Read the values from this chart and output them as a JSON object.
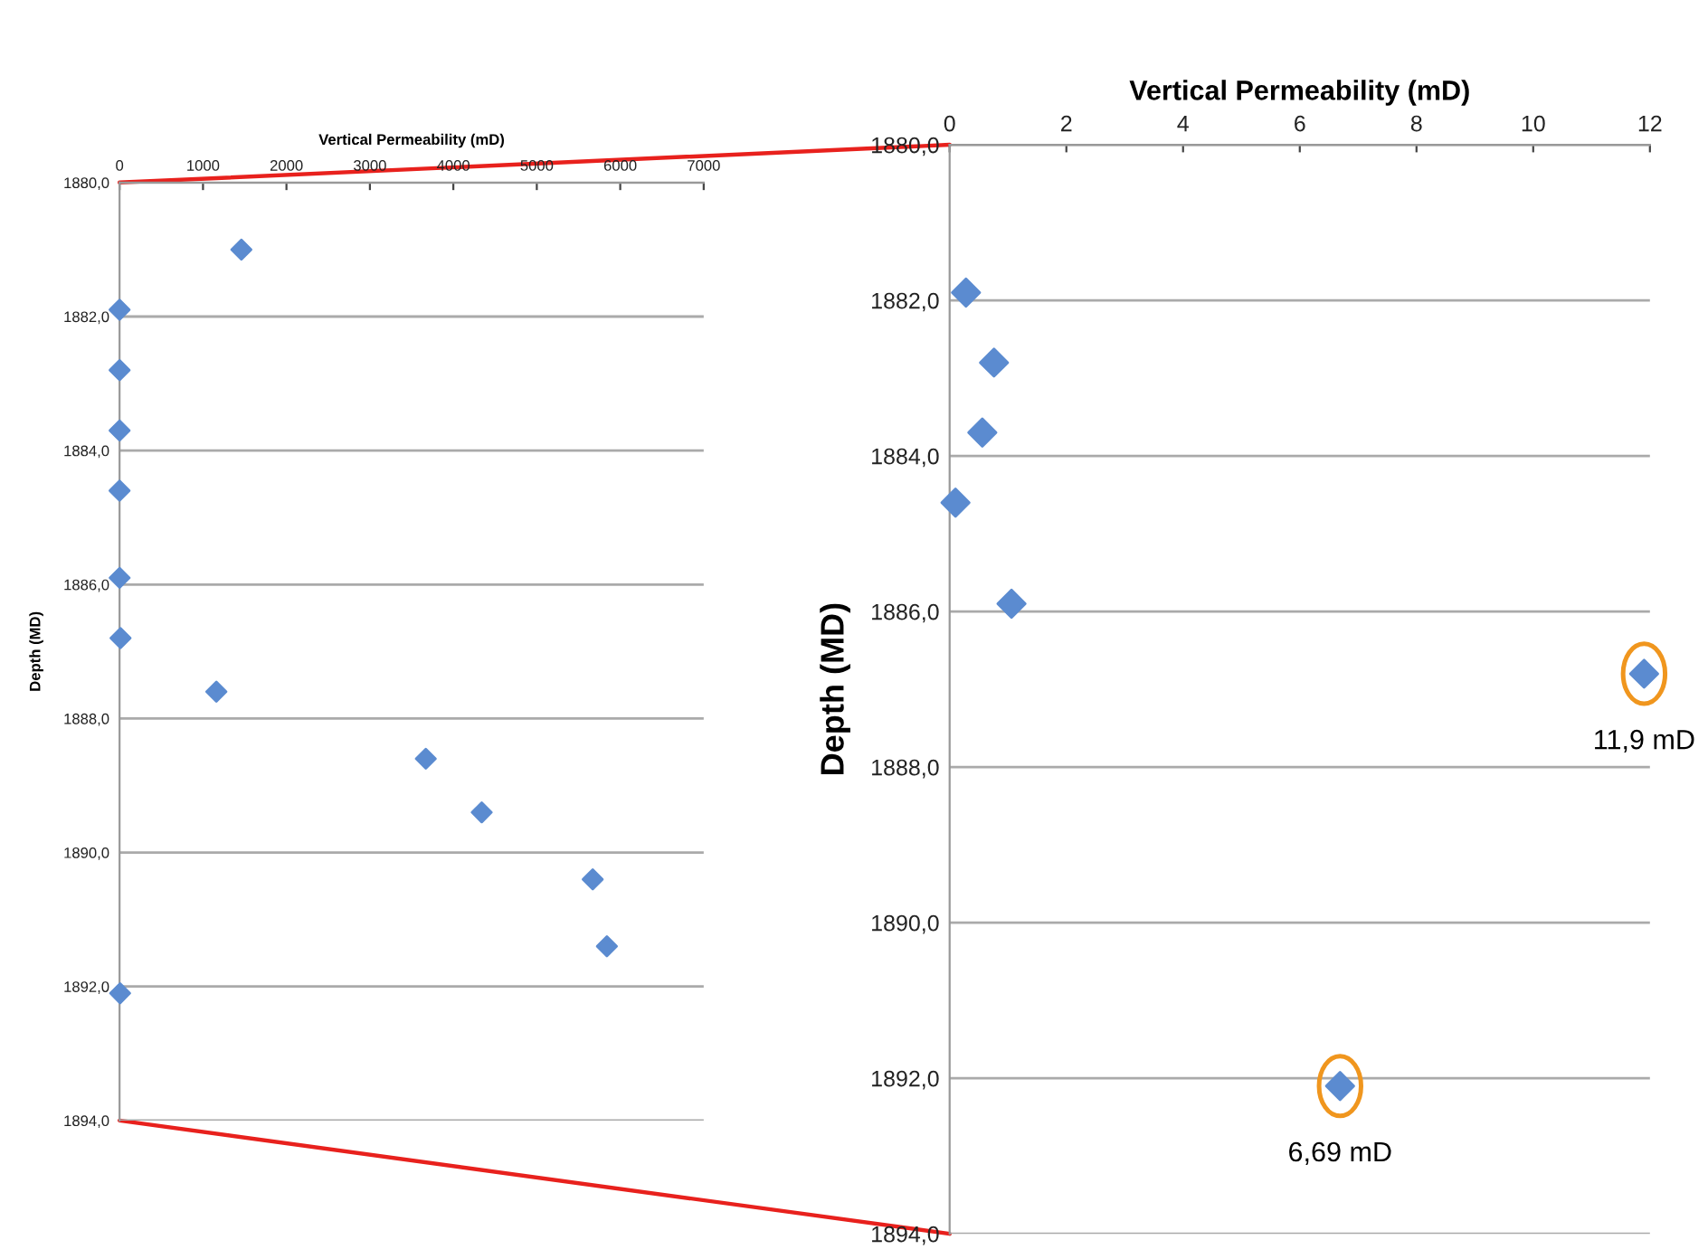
{
  "chart_data": [
    {
      "type": "scatter",
      "xlabel": "Vertical Permeability (mD)",
      "ylabel": "Depth (MD)",
      "x": [
        1460,
        0.28,
        0.76,
        0.56,
        0.1,
        1.06,
        11.9,
        1160,
        3670,
        4340,
        5670,
        5840,
        6.69
      ],
      "values": [
        1881.0,
        1881.9,
        1882.8,
        1883.7,
        1884.6,
        1885.9,
        1886.8,
        1887.6,
        1888.6,
        1889.4,
        1890.4,
        1891.4,
        1892.1
      ],
      "color": "#5b8bd0",
      "marker": "diamond",
      "grid": "y",
      "legend": false,
      "xlim": [
        0,
        7000
      ],
      "xticks": [
        0,
        1000,
        2000,
        3000,
        4000,
        5000,
        6000,
        7000
      ],
      "ylim": [
        1894,
        1880
      ],
      "yticks": [
        {
          "value": 1880,
          "label": "1880,0"
        },
        {
          "value": 1882,
          "label": "1882,0"
        },
        {
          "value": 1884,
          "label": "1884,0"
        },
        {
          "value": 1886,
          "label": "1886,0"
        },
        {
          "value": 1888,
          "label": "1888,0"
        },
        {
          "value": 1890,
          "label": "1890,0"
        },
        {
          "value": 1892,
          "label": "1892,0"
        },
        {
          "value": 1894,
          "label": "1894,0"
        }
      ]
    },
    {
      "type": "scatter",
      "xlabel": "Vertical Permeability (mD)",
      "ylabel": "Depth (MD)",
      "x": [
        0.28,
        0.76,
        0.56,
        0.1,
        1.06,
        11.9,
        6.69
      ],
      "values": [
        1881.9,
        1882.8,
        1883.7,
        1884.6,
        1885.9,
        1886.8,
        1892.1
      ],
      "color": "#5b8bd0",
      "marker": "diamond",
      "grid": "y",
      "legend": false,
      "xlim": [
        0,
        12
      ],
      "xticks": [
        0,
        2,
        4,
        6,
        8,
        10,
        12
      ],
      "ylim": [
        1894,
        1880
      ],
      "yticks": [
        {
          "value": 1880,
          "label": "1880,0"
        },
        {
          "value": 1882,
          "label": "1882,0"
        },
        {
          "value": 1884,
          "label": "1884,0"
        },
        {
          "value": 1886,
          "label": "1886,0"
        },
        {
          "value": 1888,
          "label": "1888,0"
        },
        {
          "value": 1890,
          "label": "1890,0"
        },
        {
          "value": 1892,
          "label": "1892,0"
        },
        {
          "value": 1894,
          "label": "1894,0"
        }
      ],
      "annotations": [
        {
          "text": "11,9 mD",
          "x": 11.9,
          "y": 1886.8
        },
        {
          "text": "6,69 mD",
          "x": 6.69,
          "y": 1892.1
        }
      ]
    }
  ]
}
